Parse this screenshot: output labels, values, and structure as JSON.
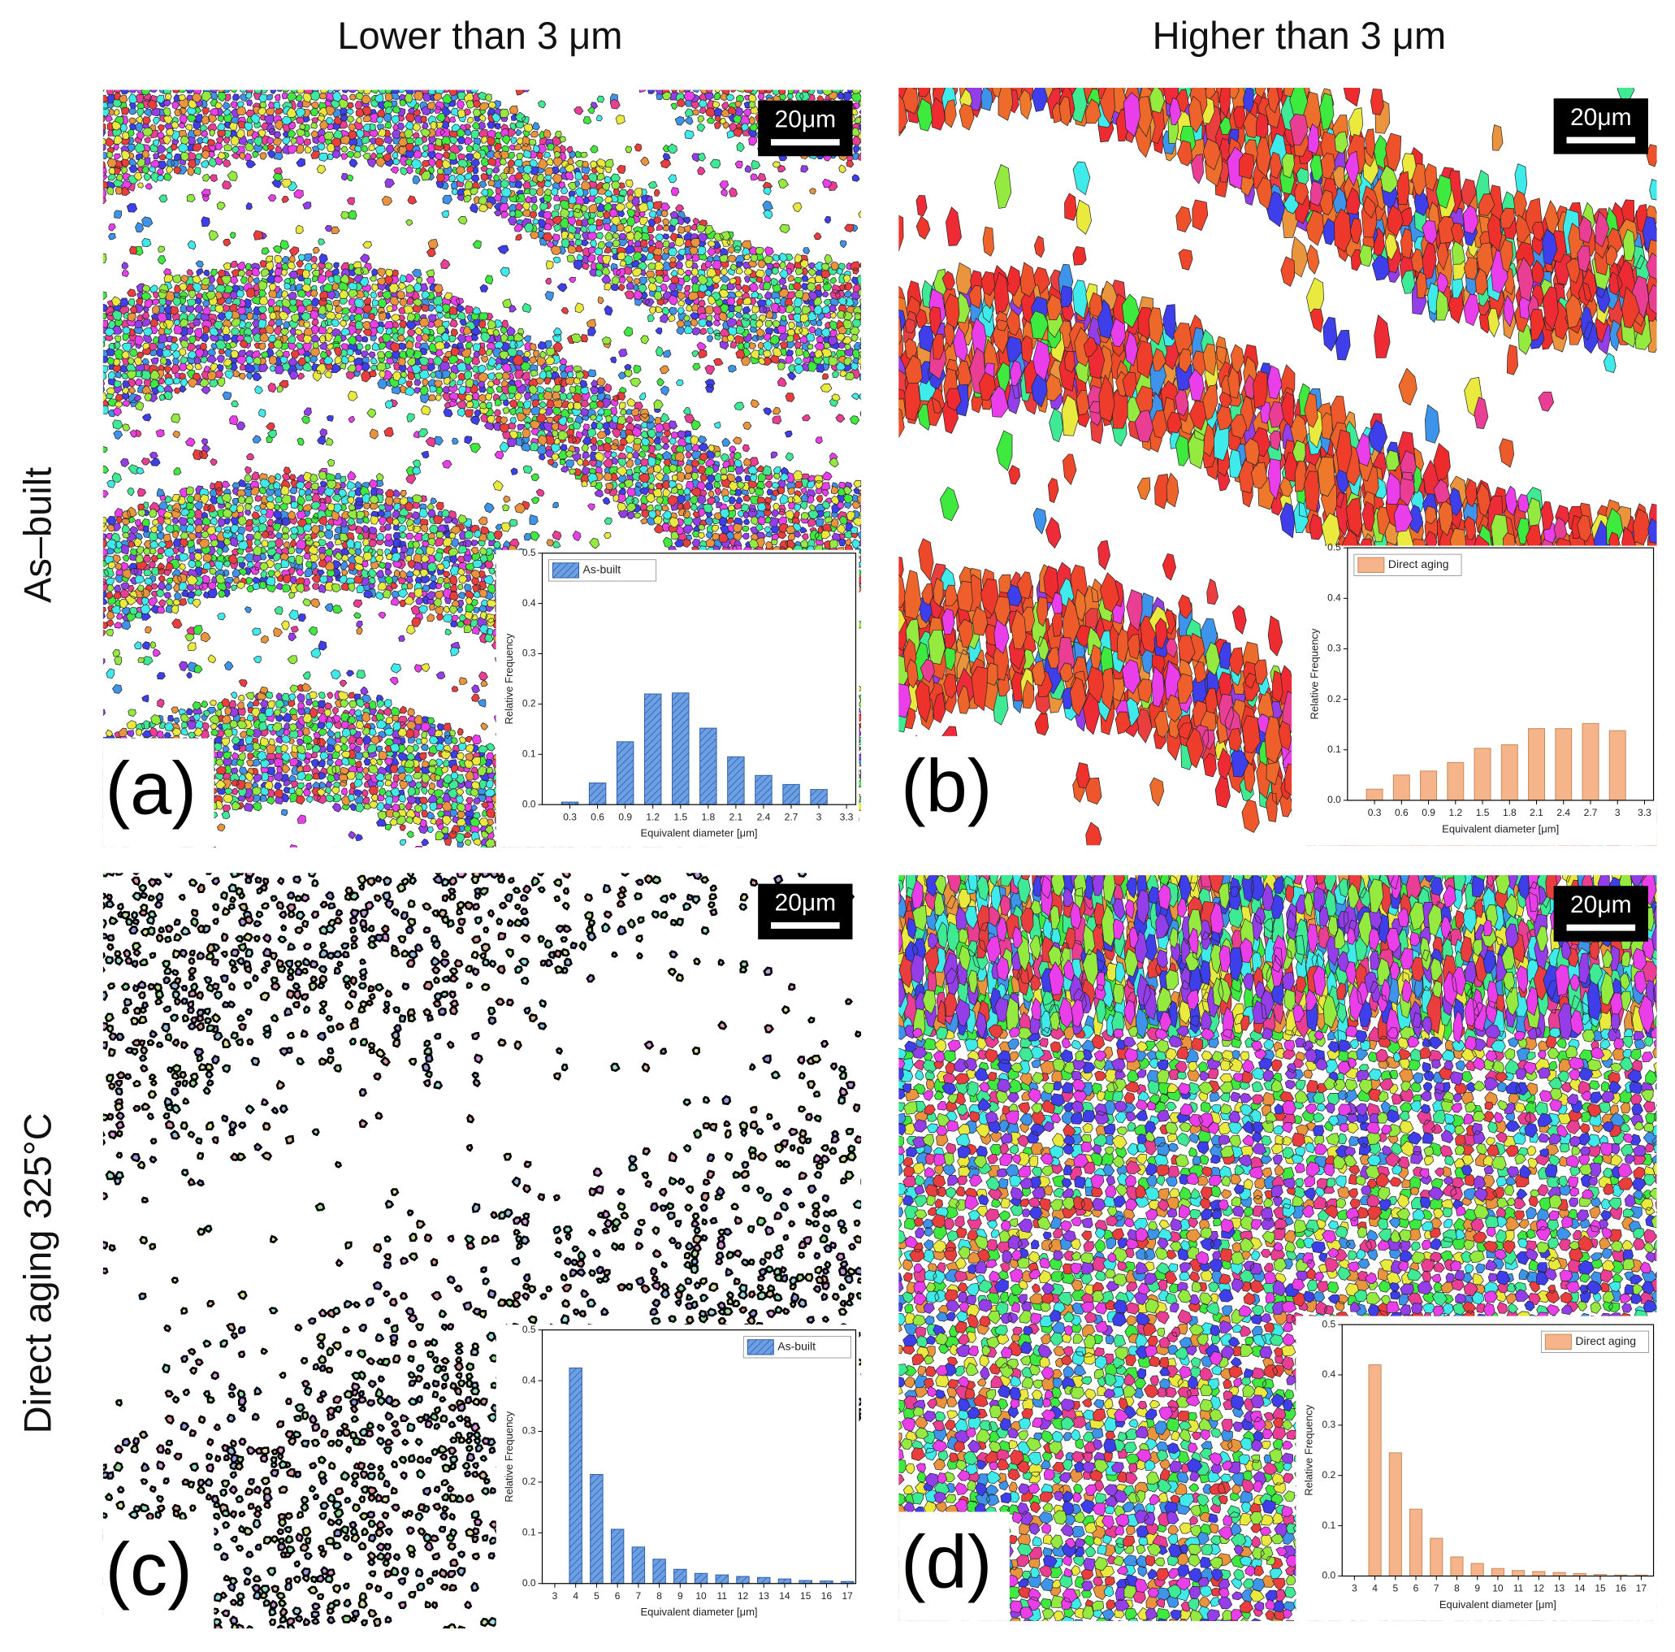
{
  "column_titles": [
    "Lower than 3 μm",
    "Higher than 3 μm"
  ],
  "row_titles": [
    "As–built",
    "Direct aging 325°C"
  ],
  "panels": [
    {
      "label": "(a)",
      "scale_bar": "20μm"
    },
    {
      "label": "(b)",
      "scale_bar": "20μm"
    },
    {
      "label": "(c)",
      "scale_bar": "20μm"
    },
    {
      "label": "(d)",
      "scale_bar": "20μm"
    }
  ],
  "chart_data": [
    {
      "type": "bar",
      "hatch": true,
      "legend": "upper left",
      "xlabel": "Equivalent diameter [μm]",
      "ylabel": "Relative Frequency",
      "x": [
        0.3,
        0.6,
        0.9,
        1.2,
        1.5,
        1.8,
        2.1,
        2.4,
        2.7,
        3
      ],
      "series": [
        {
          "name": "As-built",
          "color": "#5d93dc",
          "values": [
            0.005,
            0.043,
            0.125,
            0.22,
            0.222,
            0.152,
            0.095,
            0.058,
            0.04,
            0.03
          ]
        }
      ],
      "xlim": [
        0,
        3.4
      ],
      "xticks": [
        0.3,
        0.6,
        0.9,
        1.2,
        1.5,
        1.8,
        2.1,
        2.4,
        2.7,
        3,
        3.3
      ],
      "ylim": [
        0,
        0.5
      ],
      "yticks": [
        {
          "value": 0,
          "label": "0.0"
        },
        0.1,
        0.2,
        0.3,
        0.4,
        0.5
      ]
    },
    {
      "type": "bar",
      "hatch": false,
      "legend": "upper left",
      "xlabel": "Equivalent diameter [μm]",
      "ylabel": "Relative Frequency",
      "x": [
        0.3,
        0.6,
        0.9,
        1.2,
        1.5,
        1.8,
        2.1,
        2.4,
        2.7,
        3
      ],
      "series": [
        {
          "name": "Direct aging",
          "color": "#f5b489",
          "values": [
            0.022,
            0.05,
            0.058,
            0.075,
            0.103,
            0.11,
            0.142,
            0.142,
            0.152,
            0.138
          ]
        }
      ],
      "xlim": [
        0,
        3.4
      ],
      "xticks": [
        0.3,
        0.6,
        0.9,
        1.2,
        1.5,
        1.8,
        2.1,
        2.4,
        2.7,
        3,
        3.3
      ],
      "ylim": [
        0,
        0.5
      ],
      "yticks": [
        {
          "value": 0,
          "label": "0.0"
        },
        0.1,
        0.2,
        0.3,
        0.4,
        0.5
      ]
    },
    {
      "type": "bar",
      "hatch": true,
      "legend": "upper right",
      "xlabel": "Equivalent diameter [μm]",
      "ylabel": "Relative Frequency",
      "x": [
        4,
        5,
        6,
        7,
        8,
        9,
        10,
        11,
        12,
        13,
        14,
        15,
        16,
        17
      ],
      "series": [
        {
          "name": "As-built",
          "color": "#5d93dc",
          "values": [
            0.425,
            0.215,
            0.107,
            0.072,
            0.048,
            0.028,
            0.02,
            0.017,
            0.014,
            0.012,
            0.009,
            0.006,
            0.005,
            0.004
          ]
        }
      ],
      "xlim": [
        2.4,
        17.4
      ],
      "xticks": [
        3,
        4,
        5,
        6,
        7,
        8,
        9,
        10,
        11,
        12,
        13,
        14,
        15,
        16,
        17
      ],
      "ylim": [
        0,
        0.5
      ],
      "yticks": [
        {
          "value": 0,
          "label": "0.0"
        },
        0.1,
        0.2,
        0.3,
        0.4,
        0.5
      ]
    },
    {
      "type": "bar",
      "hatch": false,
      "legend": "upper right",
      "xlabel": "Equivalent diameter [μm]",
      "ylabel": "Relative Frequency",
      "x": [
        4,
        5,
        6,
        7,
        8,
        9,
        10,
        11,
        12,
        13,
        14,
        15,
        16,
        17
      ],
      "series": [
        {
          "name": "Direct aging",
          "color": "#f5b489",
          "values": [
            0.42,
            0.245,
            0.133,
            0.075,
            0.038,
            0.025,
            0.015,
            0.011,
            0.009,
            0.007,
            0.005,
            0.003,
            0.002,
            0.002
          ]
        }
      ],
      "xlim": [
        2.4,
        17.6
      ],
      "xticks": [
        3,
        4,
        5,
        6,
        7,
        8,
        9,
        10,
        11,
        12,
        13,
        14,
        15,
        16,
        17
      ],
      "ylim": [
        0,
        0.5
      ],
      "yticks": [
        {
          "value": 0,
          "label": "0.0"
        },
        0.1,
        0.2,
        0.3,
        0.4,
        0.5
      ]
    }
  ]
}
